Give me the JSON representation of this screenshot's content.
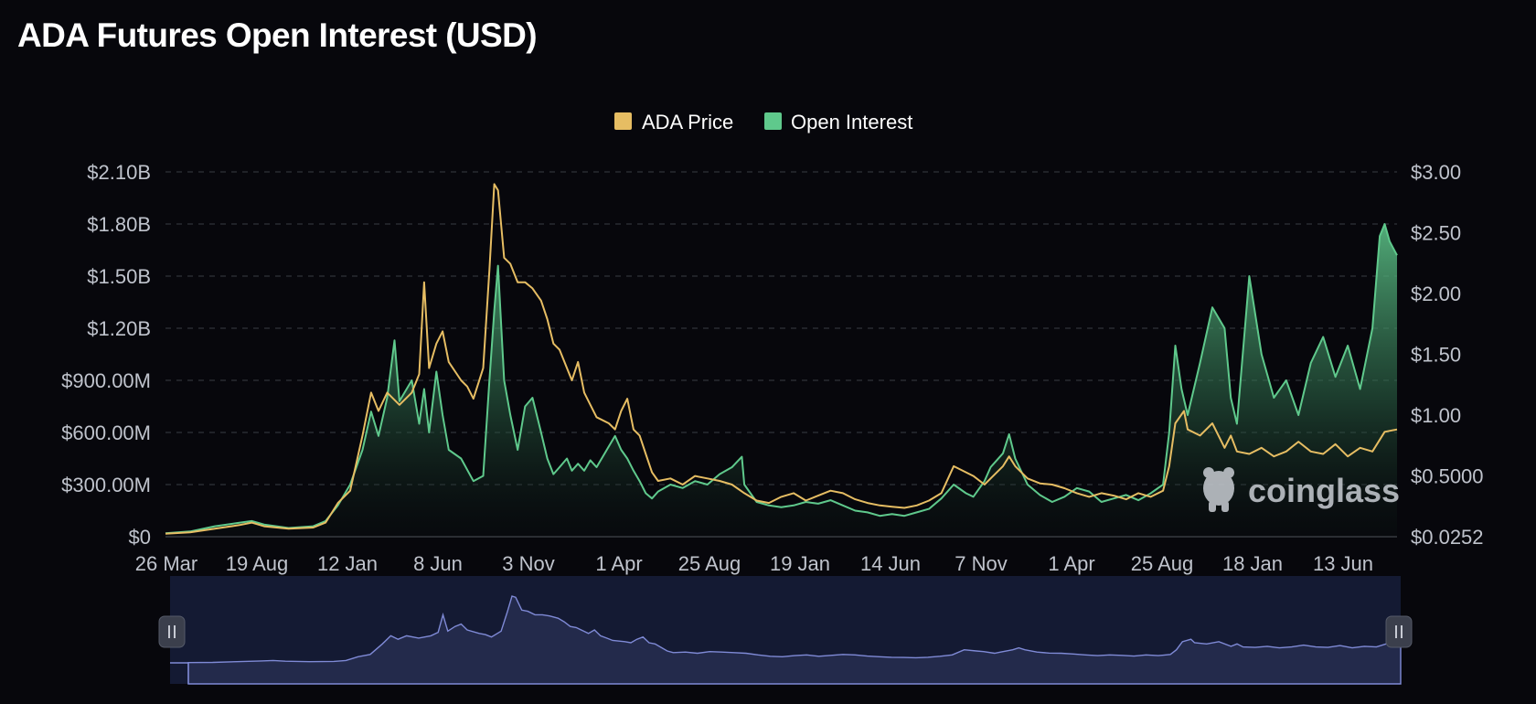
{
  "title": "ADA Futures Open Interest (USD)",
  "watermark": "coinglass",
  "colors": {
    "background": "#07070c",
    "price": "#e6bd63",
    "open_interest": "#5fc98c",
    "navigator_fill": "#232a4b",
    "navigator_line": "#7f8ad6",
    "grid": "#3a3d45"
  },
  "chart_data": {
    "type": "line",
    "title": "ADA Futures Open Interest (USD)",
    "legend_position": "top-center",
    "grid": true,
    "x_ticks": [
      "26 Mar",
      "19 Aug",
      "12 Jan",
      "8 Jun",
      "3 Nov",
      "1 Apr",
      "25 Aug",
      "19 Jan",
      "14 Jun",
      "7 Nov",
      "1 Apr",
      "25 Aug",
      "18 Jan",
      "13 Jun"
    ],
    "y_left": {
      "ticks": [
        "$0",
        "$300.00M",
        "$600.00M",
        "$900.00M",
        "$1.20B",
        "$1.50B",
        "$1.80B",
        "$2.10B"
      ],
      "range_usd_millions": [
        0,
        2100
      ]
    },
    "y_right": {
      "ticks": [
        "$0.0252",
        "$0.5000",
        "$1.00",
        "$1.50",
        "$2.00",
        "$2.50",
        "$3.00"
      ],
      "range_usd": [
        0.0252,
        3.0
      ]
    },
    "x_index_range": [
      0,
      100
    ],
    "series": [
      {
        "name": "ADA Price",
        "axis": "right",
        "unit": "USD",
        "points": [
          [
            0,
            0.05
          ],
          [
            2,
            0.06
          ],
          [
            4,
            0.09
          ],
          [
            6,
            0.12
          ],
          [
            7,
            0.14
          ],
          [
            8,
            0.11
          ],
          [
            10,
            0.09
          ],
          [
            12,
            0.1
          ],
          [
            13,
            0.14
          ],
          [
            14,
            0.3
          ],
          [
            15,
            0.4
          ],
          [
            16,
            0.85
          ],
          [
            16.7,
            1.2
          ],
          [
            17.3,
            1.05
          ],
          [
            18,
            1.2
          ],
          [
            19,
            1.1
          ],
          [
            20,
            1.2
          ],
          [
            20.6,
            1.35
          ],
          [
            21,
            2.1
          ],
          [
            21.4,
            1.4
          ],
          [
            22,
            1.6
          ],
          [
            22.5,
            1.7
          ],
          [
            23,
            1.45
          ],
          [
            24,
            1.3
          ],
          [
            24.5,
            1.25
          ],
          [
            25,
            1.15
          ],
          [
            25.8,
            1.4
          ],
          [
            26.3,
            2.2
          ],
          [
            26.7,
            2.9
          ],
          [
            27,
            2.85
          ],
          [
            27.5,
            2.3
          ],
          [
            28,
            2.25
          ],
          [
            28.6,
            2.1
          ],
          [
            29.2,
            2.1
          ],
          [
            29.8,
            2.05
          ],
          [
            30.5,
            1.95
          ],
          [
            31,
            1.8
          ],
          [
            31.5,
            1.6
          ],
          [
            32,
            1.55
          ],
          [
            32.6,
            1.4
          ],
          [
            33,
            1.3
          ],
          [
            33.5,
            1.45
          ],
          [
            34,
            1.2
          ],
          [
            34.5,
            1.1
          ],
          [
            35,
            1.0
          ],
          [
            36,
            0.95
          ],
          [
            36.5,
            0.9
          ],
          [
            37,
            1.05
          ],
          [
            37.5,
            1.15
          ],
          [
            38,
            0.9
          ],
          [
            38.5,
            0.85
          ],
          [
            39,
            0.7
          ],
          [
            39.5,
            0.55
          ],
          [
            40,
            0.48
          ],
          [
            41,
            0.5
          ],
          [
            42,
            0.45
          ],
          [
            43,
            0.52
          ],
          [
            44,
            0.5
          ],
          [
            45,
            0.48
          ],
          [
            46,
            0.45
          ],
          [
            47,
            0.38
          ],
          [
            48,
            0.32
          ],
          [
            49,
            0.3
          ],
          [
            50,
            0.35
          ],
          [
            51,
            0.38
          ],
          [
            52,
            0.32
          ],
          [
            53,
            0.36
          ],
          [
            54,
            0.4
          ],
          [
            55,
            0.38
          ],
          [
            56,
            0.33
          ],
          [
            57,
            0.3
          ],
          [
            58,
            0.28
          ],
          [
            59,
            0.27
          ],
          [
            60,
            0.26
          ],
          [
            61,
            0.28
          ],
          [
            62,
            0.32
          ],
          [
            63,
            0.38
          ],
          [
            64,
            0.6
          ],
          [
            65,
            0.55
          ],
          [
            65.6,
            0.52
          ],
          [
            66.5,
            0.45
          ],
          [
            67,
            0.5
          ],
          [
            68,
            0.6
          ],
          [
            68.5,
            0.68
          ],
          [
            69,
            0.6
          ],
          [
            70,
            0.5
          ],
          [
            71,
            0.46
          ],
          [
            72,
            0.45
          ],
          [
            73,
            0.42
          ],
          [
            74,
            0.38
          ],
          [
            75,
            0.35
          ],
          [
            76,
            0.38
          ],
          [
            77,
            0.36
          ],
          [
            78,
            0.33
          ],
          [
            79,
            0.38
          ],
          [
            80,
            0.35
          ],
          [
            81,
            0.4
          ],
          [
            81.5,
            0.6
          ],
          [
            82,
            0.95
          ],
          [
            82.7,
            1.05
          ],
          [
            83,
            0.9
          ],
          [
            84,
            0.85
          ],
          [
            85,
            0.95
          ],
          [
            86,
            0.75
          ],
          [
            86.5,
            0.85
          ],
          [
            87,
            0.72
          ],
          [
            88,
            0.7
          ],
          [
            89,
            0.75
          ],
          [
            90,
            0.68
          ],
          [
            91,
            0.72
          ],
          [
            92,
            0.8
          ],
          [
            93,
            0.72
          ],
          [
            94,
            0.7
          ],
          [
            95,
            0.78
          ],
          [
            96,
            0.68
          ],
          [
            97,
            0.75
          ],
          [
            98,
            0.72
          ],
          [
            99,
            0.88
          ],
          [
            100,
            0.9
          ]
        ]
      },
      {
        "name": "Open Interest",
        "axis": "left",
        "unit": "USD millions",
        "points": [
          [
            0,
            20
          ],
          [
            2,
            30
          ],
          [
            4,
            60
          ],
          [
            6,
            80
          ],
          [
            7,
            90
          ],
          [
            8,
            70
          ],
          [
            10,
            50
          ],
          [
            12,
            60
          ],
          [
            13,
            90
          ],
          [
            14,
            180
          ],
          [
            15,
            300
          ],
          [
            16,
            500
          ],
          [
            16.7,
            720
          ],
          [
            17.3,
            580
          ],
          [
            18,
            800
          ],
          [
            18.6,
            1130
          ],
          [
            19,
            780
          ],
          [
            20,
            900
          ],
          [
            20.6,
            650
          ],
          [
            21,
            850
          ],
          [
            21.4,
            600
          ],
          [
            22,
            950
          ],
          [
            22.5,
            700
          ],
          [
            23,
            500
          ],
          [
            24,
            450
          ],
          [
            25,
            320
          ],
          [
            25.8,
            350
          ],
          [
            26.3,
            900
          ],
          [
            26.7,
            1300
          ],
          [
            27,
            1560
          ],
          [
            27.5,
            900
          ],
          [
            28,
            700
          ],
          [
            28.6,
            500
          ],
          [
            29.2,
            750
          ],
          [
            29.8,
            800
          ],
          [
            30.5,
            600
          ],
          [
            31,
            450
          ],
          [
            31.5,
            360
          ],
          [
            32,
            400
          ],
          [
            32.6,
            450
          ],
          [
            33,
            380
          ],
          [
            33.5,
            420
          ],
          [
            34,
            380
          ],
          [
            34.5,
            440
          ],
          [
            35,
            400
          ],
          [
            36,
            520
          ],
          [
            36.5,
            580
          ],
          [
            37,
            500
          ],
          [
            37.5,
            450
          ],
          [
            38,
            380
          ],
          [
            38.5,
            320
          ],
          [
            39,
            250
          ],
          [
            39.5,
            220
          ],
          [
            40,
            260
          ],
          [
            41,
            300
          ],
          [
            42,
            280
          ],
          [
            43,
            320
          ],
          [
            44,
            300
          ],
          [
            45,
            360
          ],
          [
            46,
            400
          ],
          [
            46.8,
            460
          ],
          [
            47,
            300
          ],
          [
            48,
            200
          ],
          [
            49,
            180
          ],
          [
            50,
            170
          ],
          [
            51,
            180
          ],
          [
            52,
            200
          ],
          [
            53,
            190
          ],
          [
            54,
            210
          ],
          [
            55,
            180
          ],
          [
            56,
            150
          ],
          [
            57,
            140
          ],
          [
            58,
            120
          ],
          [
            59,
            130
          ],
          [
            60,
            120
          ],
          [
            61,
            140
          ],
          [
            62,
            160
          ],
          [
            63,
            220
          ],
          [
            64,
            300
          ],
          [
            65,
            250
          ],
          [
            65.6,
            230
          ],
          [
            66.5,
            320
          ],
          [
            67,
            400
          ],
          [
            68,
            480
          ],
          [
            68.5,
            590
          ],
          [
            69,
            450
          ],
          [
            70,
            300
          ],
          [
            71,
            240
          ],
          [
            72,
            200
          ],
          [
            73,
            230
          ],
          [
            74,
            280
          ],
          [
            75,
            260
          ],
          [
            76,
            200
          ],
          [
            77,
            220
          ],
          [
            78,
            240
          ],
          [
            79,
            210
          ],
          [
            80,
            250
          ],
          [
            81,
            300
          ],
          [
            81.5,
            600
          ],
          [
            82,
            1100
          ],
          [
            82.5,
            850
          ],
          [
            83,
            700
          ],
          [
            84,
            1000
          ],
          [
            85,
            1320
          ],
          [
            86,
            1200
          ],
          [
            86.5,
            800
          ],
          [
            87,
            650
          ],
          [
            88,
            1500
          ],
          [
            89,
            1050
          ],
          [
            90,
            800
          ],
          [
            91,
            900
          ],
          [
            92,
            700
          ],
          [
            93,
            1000
          ],
          [
            94,
            1150
          ],
          [
            95,
            920
          ],
          [
            96,
            1100
          ],
          [
            97,
            850
          ],
          [
            98,
            1200
          ],
          [
            98.6,
            1730
          ],
          [
            99,
            1800
          ],
          [
            99.4,
            1700
          ],
          [
            100,
            1620
          ]
        ]
      }
    ]
  }
}
